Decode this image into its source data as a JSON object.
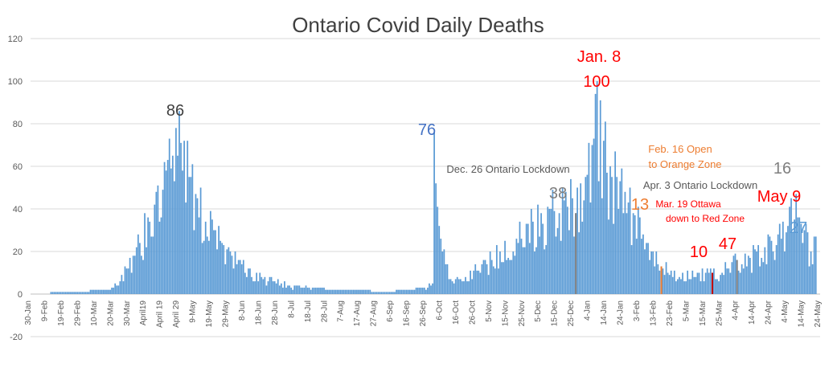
{
  "colors": {
    "bar": "#5b9bd5",
    "grid": "#d9d9d9",
    "axis_text": "#595959",
    "title": "#404040",
    "marker_lockdown": "#7f7f7f",
    "marker_orange": "#ed7d31",
    "marker_red": "#c00000"
  },
  "chart_data": {
    "type": "bar",
    "title": "Ontario Covid Daily Deaths",
    "xlabel": "",
    "ylabel": "",
    "ylim": [
      -20,
      120
    ],
    "yticks": [
      -20,
      0,
      20,
      40,
      60,
      80,
      100,
      120
    ],
    "grid": true,
    "legend": "none",
    "x_start": "2020-01-30",
    "x_end": "2021-05-24",
    "x_tick_labels": [
      "30-Jan",
      "9-Feb",
      "19-Feb",
      "29-Feb",
      "10-Mar",
      "20-Mar",
      "30-Mar",
      "April19",
      "April 19",
      "April 29",
      "9-May",
      "19-May",
      "29-May",
      "8-Jun",
      "18-Jun",
      "28-Jun",
      "8-Jul",
      "18-Jul",
      "28-Jul",
      "7-Aug",
      "17-Aug",
      "27-Aug",
      "6-Sep",
      "16-Sep",
      "26-Sep",
      "6-Oct",
      "16-Oct",
      "26-Oct",
      "5-Nov",
      "15-Nov",
      "25-Nov",
      "5-Dec",
      "15-Dec",
      "25-Dec",
      "4-Jan",
      "14-Jan",
      "24-Jan",
      "3-Feb",
      "13-Feb",
      "23-Feb",
      "5-Mar",
      "15-Mar",
      "25-Mar",
      "4-Apr",
      "14-Apr",
      "24-Apr",
      "4-May",
      "14-May",
      "24-May"
    ],
    "series": [
      {
        "dates": [
          "2020-01-30",
          "2020-03-17",
          "2020-03-20",
          "2020-03-24",
          "2020-03-28",
          "2020-04-01",
          "2020-04-05",
          "2020-04-10",
          "2020-04-15",
          "2020-04-20",
          "2020-04-25",
          "2020-04-29",
          "2020-05-02",
          "2020-05-06",
          "2020-05-10",
          "2020-05-15",
          "2020-05-20",
          "2020-05-25",
          "2020-05-30",
          "2020-06-05",
          "2020-06-10",
          "2020-06-15",
          "2020-06-20",
          "2020-06-25",
          "2020-06-30",
          "2020-07-10",
          "2020-07-20",
          "2020-08-01",
          "2020-08-15",
          "2020-09-01",
          "2020-09-15",
          "2020-09-25",
          "2020-09-30",
          "2020-10-01",
          "2020-10-03",
          "2020-10-10",
          "2020-10-20",
          "2020-10-30",
          "2020-11-10",
          "2020-11-20",
          "2020-11-30",
          "2020-12-10",
          "2020-12-20",
          "2020-12-26",
          "2021-01-01",
          "2021-01-05",
          "2021-01-08",
          "2021-01-12",
          "2021-01-16",
          "2021-01-20",
          "2021-01-25",
          "2021-01-30",
          "2021-02-05",
          "2021-02-10",
          "2021-02-16",
          "2021-02-22",
          "2021-03-01",
          "2021-03-10",
          "2021-03-19",
          "2021-03-28",
          "2021-04-03",
          "2021-04-10",
          "2021-04-20",
          "2021-04-28",
          "2021-05-04",
          "2021-05-09",
          "2021-05-14",
          "2021-05-18",
          "2021-05-21"
        ],
        "values": [
          0,
          2,
          3,
          6,
          12,
          18,
          24,
          36,
          48,
          62,
          65,
          86,
          72,
          55,
          45,
          34,
          30,
          24,
          20,
          16,
          12,
          10,
          8,
          6,
          5,
          4,
          3,
          2,
          2,
          1,
          2,
          3,
          5,
          76,
          41,
          7,
          8,
          14,
          20,
          26,
          34,
          40,
          48,
          38,
          55,
          70,
          100,
          72,
          60,
          55,
          48,
          38,
          28,
          20,
          13,
          11,
          10,
          10,
          10,
          12,
          16,
          18,
          22,
          28,
          32,
          47,
          30,
          20,
          27
        ]
      }
    ],
    "annotations": [
      {
        "text": "86",
        "date": "2020-04-29",
        "color": "#404040"
      },
      {
        "text": "76",
        "date": "2020-09-30",
        "color": "#4472c4"
      },
      {
        "text": "Dec. 26 Ontario Lockdown",
        "date": "2020-12-26",
        "color": "#595959"
      },
      {
        "text": "38",
        "date": "2020-12-26",
        "color": "#7f7f7f"
      },
      {
        "text": "Jan. 8",
        "date": "2021-01-08",
        "color": "#ff0000"
      },
      {
        "text": "100",
        "date": "2021-01-08",
        "color": "#ff0000"
      },
      {
        "text": "Feb. 16 Open",
        "date": "2021-02-16",
        "color": "#ed7d31"
      },
      {
        "text": "to Orange Zone",
        "date": "2021-02-16",
        "color": "#ed7d31"
      },
      {
        "text": "13",
        "date": "2021-02-16",
        "color": "#ed7d31"
      },
      {
        "text": "Apr. 3 Ontario Lockdown",
        "date": "2021-04-03",
        "color": "#595959"
      },
      {
        "text": "Mar. 19 Ottawa",
        "date": "2021-03-19",
        "color": "#ff0000"
      },
      {
        "text": "down to Red Zone",
        "date": "2021-03-19",
        "color": "#ff0000"
      },
      {
        "text": "10",
        "date": "2021-03-19",
        "color": "#ff0000"
      },
      {
        "text": "16",
        "date": "2021-04-03",
        "color": "#7f7f7f"
      },
      {
        "text": "May 9",
        "date": "2021-05-09",
        "color": "#ff0000"
      },
      {
        "text": "47",
        "date": "2021-05-09",
        "color": "#ff0000"
      },
      {
        "text": "27",
        "date": "2021-05-21",
        "color": "#5b9bd5"
      }
    ],
    "event_markers": [
      {
        "date": "2020-12-26",
        "color": "#7f7f7f",
        "value": 38
      },
      {
        "date": "2021-02-16",
        "color": "#ed7d31",
        "value": 13
      },
      {
        "date": "2021-03-19",
        "color": "#c00000",
        "value": 10
      },
      {
        "date": "2021-04-03",
        "color": "#7f7f7f",
        "value": 16
      }
    ]
  }
}
